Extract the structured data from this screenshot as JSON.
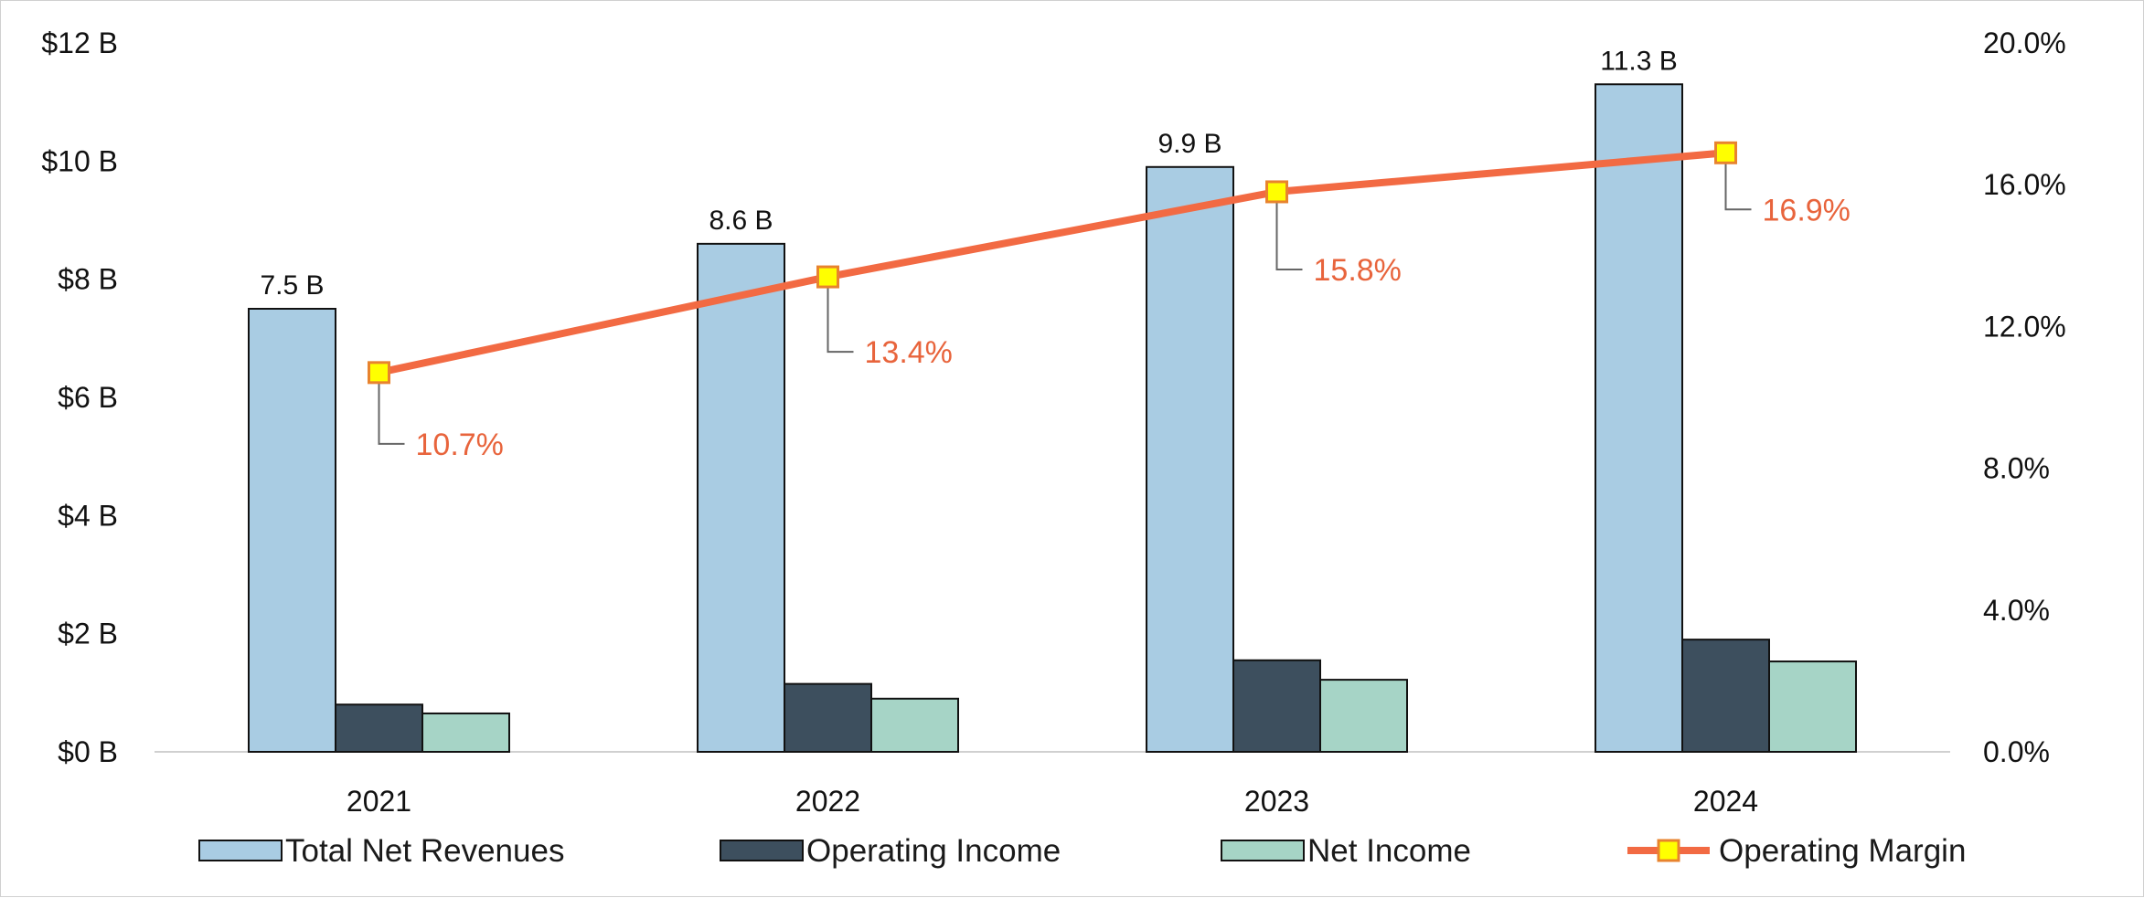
{
  "chart_data": {
    "type": "bar",
    "categories": [
      "2021",
      "2022",
      "2023",
      "2024"
    ],
    "series": [
      {
        "name": "Total Net Revenues",
        "type": "bar",
        "axis": "left",
        "color": "#a9cce3",
        "values": [
          7.5,
          8.6,
          9.9,
          11.3
        ],
        "labels": [
          "7.5 B",
          "8.6 B",
          "9.9 B",
          "11.3 B"
        ]
      },
      {
        "name": "Operating Income",
        "type": "bar",
        "axis": "left",
        "color": "#3d4f5e",
        "values": [
          0.8,
          1.15,
          1.55,
          1.9
        ]
      },
      {
        "name": "Net Income",
        "type": "bar",
        "axis": "left",
        "color": "#a6d4c6",
        "values": [
          0.65,
          0.9,
          1.22,
          1.53
        ]
      },
      {
        "name": "Operating Margin",
        "type": "line",
        "axis": "right",
        "color": "#f26a43",
        "marker_color": "#ffff00",
        "values": [
          10.7,
          13.4,
          15.8,
          16.9
        ],
        "labels": [
          "10.7%",
          "13.4%",
          "15.8%",
          "16.9%"
        ]
      }
    ],
    "y_left": {
      "ylim": [
        0,
        12
      ],
      "ticks": [
        0,
        2,
        4,
        6,
        8,
        10,
        12
      ],
      "tick_labels": [
        "$0 B",
        "$2 B",
        "$4 B",
        "$6 B",
        "$8 B",
        "$10 B",
        "$12 B"
      ]
    },
    "y_right": {
      "ylim": [
        0,
        20
      ],
      "ticks": [
        0,
        4,
        8,
        12,
        16,
        20
      ],
      "tick_labels": [
        "0.0%",
        "4.0%",
        "8.0%",
        "12.0%",
        "16.0%",
        "20.0%"
      ]
    },
    "title": "",
    "xlabel": "",
    "ylabel": "",
    "grid": false,
    "legend_position": "bottom"
  }
}
